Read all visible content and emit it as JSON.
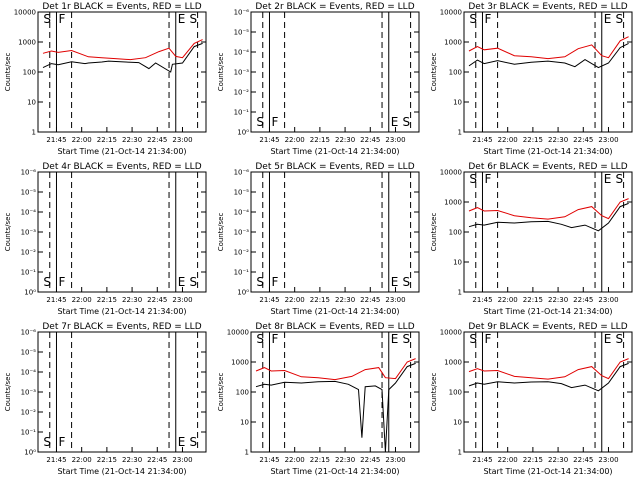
{
  "chart_data": [
    {
      "type": "line",
      "title": "Det 1r BLACK = Events, RED = LLD",
      "xlabel": "Start Time (21-Oct-14 21:34:00)",
      "ylabel": "Counts/sec",
      "ylog": true,
      "yticks": [
        "1",
        "10",
        "100",
        "1000",
        "10000"
      ],
      "ylim": [
        1,
        10000
      ],
      "xticks": [
        "21:45",
        "22:00",
        "22:15",
        "22:30",
        "22:45",
        "23:00"
      ],
      "xlim_minutes": [
        0,
        100
      ],
      "has_data": true,
      "markers": [
        {
          "label": "S",
          "minute": 2
        },
        {
          "label": "F",
          "minute": 11
        },
        {
          "label": "E",
          "minute": 82
        },
        {
          "label": "S",
          "minute": 89
        }
      ],
      "series": [
        {
          "name": "Events",
          "color": "#000000",
          "values": [
            [
              3,
              140
            ],
            [
              8,
              190
            ],
            [
              12,
              175
            ],
            [
              20,
              220
            ],
            [
              28,
              190
            ],
            [
              30,
              200
            ],
            [
              38,
              215
            ],
            [
              42,
              230
            ],
            [
              55,
              210
            ],
            [
              60,
              205
            ],
            [
              66,
              130
            ],
            [
              70,
              200
            ],
            [
              79,
              100
            ],
            [
              80,
              180
            ],
            [
              86,
              200
            ],
            [
              93,
              700
            ],
            [
              98,
              900
            ]
          ]
        },
        {
          "name": "LLD",
          "color": "#e00000",
          "values": [
            [
              3,
              420
            ],
            [
              8,
              500
            ],
            [
              12,
              450
            ],
            [
              20,
              520
            ],
            [
              30,
              320
            ],
            [
              38,
              300
            ],
            [
              46,
              280
            ],
            [
              55,
              260
            ],
            [
              64,
              300
            ],
            [
              72,
              480
            ],
            [
              78,
              620
            ],
            [
              82,
              330
            ],
            [
              86,
              300
            ],
            [
              93,
              900
            ],
            [
              98,
              1200
            ]
          ]
        }
      ]
    },
    {
      "type": "line",
      "title": "Det 2r BLACK = Events, RED = LLD",
      "xlabel": "Start Time (21-Oct-14 21:34:00)",
      "ylabel": "Counts/sec",
      "ylog": true,
      "yticks": [
        "10⁰",
        "10⁻¹",
        "10⁻²",
        "10⁻³",
        "10⁻⁴",
        "10⁻⁵",
        "10⁻⁶"
      ],
      "ylim": [
        1,
        1e-06
      ],
      "xticks": [
        "21:45",
        "22:00",
        "22:15",
        "22:30",
        "22:45",
        "23:00"
      ],
      "xlim_minutes": [
        0,
        100
      ],
      "has_data": false,
      "markers": [
        {
          "label": "S",
          "minute": 2
        },
        {
          "label": "F",
          "minute": 11
        },
        {
          "label": "E",
          "minute": 82
        },
        {
          "label": "S",
          "minute": 89
        }
      ],
      "series": []
    },
    {
      "type": "line",
      "title": "Det 3r BLACK = Events, RED = LLD",
      "xlabel": "Start Time (21-Oct-14 21:34:00)",
      "ylabel": "Counts/sec",
      "ylog": true,
      "yticks": [
        "1",
        "10",
        "100",
        "1000",
        "10000"
      ],
      "ylim": [
        1,
        10000
      ],
      "xticks": [
        "21:45",
        "22:00",
        "22:15",
        "22:30",
        "22:45",
        "23:00"
      ],
      "xlim_minutes": [
        0,
        100
      ],
      "has_data": true,
      "markers": [
        {
          "label": "S",
          "minute": 2
        },
        {
          "label": "F",
          "minute": 11
        },
        {
          "label": "E",
          "minute": 82
        },
        {
          "label": "S",
          "minute": 89
        }
      ],
      "series": [
        {
          "name": "Events",
          "color": "#000000",
          "values": [
            [
              3,
              160
            ],
            [
              8,
              250
            ],
            [
              12,
              190
            ],
            [
              20,
              240
            ],
            [
              30,
              180
            ],
            [
              40,
              210
            ],
            [
              50,
              230
            ],
            [
              60,
              200
            ],
            [
              66,
              150
            ],
            [
              72,
              260
            ],
            [
              80,
              140
            ],
            [
              86,
              200
            ],
            [
              93,
              650
            ],
            [
              98,
              900
            ]
          ]
        },
        {
          "name": "LLD",
          "color": "#e00000",
          "values": [
            [
              3,
              500
            ],
            [
              8,
              700
            ],
            [
              12,
              550
            ],
            [
              20,
              620
            ],
            [
              30,
              350
            ],
            [
              40,
              320
            ],
            [
              50,
              280
            ],
            [
              60,
              320
            ],
            [
              68,
              600
            ],
            [
              76,
              800
            ],
            [
              82,
              350
            ],
            [
              86,
              300
            ],
            [
              93,
              1100
            ],
            [
              98,
              1500
            ]
          ]
        }
      ]
    },
    {
      "type": "line",
      "title": "Det 4r BLACK = Events, RED = LLD",
      "xlabel": "Start Time (21-Oct-14 21:34:00)",
      "ylabel": "Counts/sec",
      "ylog": true,
      "yticks": [
        "10⁰",
        "10⁻¹",
        "10⁻²",
        "10⁻³",
        "10⁻⁴",
        "10⁻⁵",
        "10⁻⁶"
      ],
      "ylim": [
        1,
        1e-06
      ],
      "xticks": [
        "21:45",
        "22:00",
        "22:15",
        "22:30",
        "22:45",
        "23:00"
      ],
      "xlim_minutes": [
        0,
        100
      ],
      "has_data": false,
      "markers": [
        {
          "label": "S",
          "minute": 2
        },
        {
          "label": "F",
          "minute": 11
        },
        {
          "label": "E",
          "minute": 82
        },
        {
          "label": "S",
          "minute": 89
        }
      ],
      "series": []
    },
    {
      "type": "line",
      "title": "Det 5r BLACK = Events, RED = LLD",
      "xlabel": "Start Time (21-Oct-14 21:34:00)",
      "ylabel": "Counts/sec",
      "ylog": true,
      "yticks": [
        "10⁰",
        "10⁻¹",
        "10⁻²",
        "10⁻³",
        "10⁻⁴",
        "10⁻⁵",
        "10⁻⁶"
      ],
      "ylim": [
        1,
        1e-06
      ],
      "xticks": [
        "21:45",
        "22:00",
        "22:15",
        "22:30",
        "22:45",
        "23:00"
      ],
      "xlim_minutes": [
        0,
        100
      ],
      "has_data": false,
      "markers": [
        {
          "label": "S",
          "minute": 2
        },
        {
          "label": "F",
          "minute": 11
        },
        {
          "label": "E",
          "minute": 82
        },
        {
          "label": "S",
          "minute": 89
        }
      ],
      "series": []
    },
    {
      "type": "line",
      "title": "Det 6r BLACK = Events, RED = LLD",
      "xlabel": "Start Time (21-Oct-14 21:34:00)",
      "ylabel": "Counts/sec",
      "ylog": true,
      "yticks": [
        "1",
        "10",
        "100",
        "1000",
        "10000"
      ],
      "ylim": [
        1,
        10000
      ],
      "xticks": [
        "21:45",
        "22:00",
        "22:15",
        "22:30",
        "22:45",
        "23:00"
      ],
      "xlim_minutes": [
        0,
        100
      ],
      "has_data": true,
      "markers": [
        {
          "label": "S",
          "minute": 2
        },
        {
          "label": "F",
          "minute": 11
        },
        {
          "label": "E",
          "minute": 82
        },
        {
          "label": "S",
          "minute": 89
        }
      ],
      "series": [
        {
          "name": "Events",
          "color": "#000000",
          "values": [
            [
              3,
              150
            ],
            [
              8,
              180
            ],
            [
              12,
              170
            ],
            [
              20,
              210
            ],
            [
              30,
              200
            ],
            [
              40,
              220
            ],
            [
              50,
              225
            ],
            [
              58,
              180
            ],
            [
              64,
              140
            ],
            [
              72,
              170
            ],
            [
              80,
              110
            ],
            [
              86,
              200
            ],
            [
              93,
              700
            ],
            [
              98,
              900
            ]
          ]
        },
        {
          "name": "LLD",
          "color": "#e00000",
          "values": [
            [
              3,
              500
            ],
            [
              8,
              650
            ],
            [
              12,
              500
            ],
            [
              20,
              520
            ],
            [
              30,
              350
            ],
            [
              40,
              300
            ],
            [
              50,
              270
            ],
            [
              60,
              320
            ],
            [
              68,
              560
            ],
            [
              76,
              700
            ],
            [
              82,
              350
            ],
            [
              86,
              280
            ],
            [
              93,
              1000
            ],
            [
              98,
              1300
            ]
          ]
        }
      ]
    },
    {
      "type": "line",
      "title": "Det 7r BLACK = Events, RED = LLD",
      "xlabel": "Start Time (21-Oct-14 21:34:00)",
      "ylabel": "Counts/sec",
      "ylog": true,
      "yticks": [
        "10⁰",
        "10⁻¹",
        "10⁻²",
        "10⁻³",
        "10⁻⁴",
        "10⁻⁵",
        "10⁻⁶"
      ],
      "ylim": [
        1,
        1e-06
      ],
      "xticks": [
        "21:45",
        "22:00",
        "22:15",
        "22:30",
        "22:45",
        "23:00"
      ],
      "xlim_minutes": [
        0,
        100
      ],
      "has_data": false,
      "markers": [
        {
          "label": "S",
          "minute": 2
        },
        {
          "label": "F",
          "minute": 11
        },
        {
          "label": "E",
          "minute": 82
        },
        {
          "label": "S",
          "minute": 89
        }
      ],
      "series": []
    },
    {
      "type": "line",
      "title": "Det 8r BLACK = Events, RED = LLD",
      "xlabel": "Start Time (21-Oct-14 21:34:00)",
      "ylabel": "Counts/sec",
      "ylog": true,
      "yticks": [
        "1",
        "10",
        "100",
        "1000",
        "10000"
      ],
      "ylim": [
        1,
        10000
      ],
      "xticks": [
        "21:45",
        "22:00",
        "22:15",
        "22:30",
        "22:45",
        "23:00"
      ],
      "xlim_minutes": [
        0,
        100
      ],
      "has_data": true,
      "markers": [
        {
          "label": "S",
          "minute": 2
        },
        {
          "label": "F",
          "minute": 11
        },
        {
          "label": "E",
          "minute": 82
        },
        {
          "label": "S",
          "minute": 89
        }
      ],
      "series": [
        {
          "name": "Events",
          "color": "#000000",
          "values": [
            [
              3,
              150
            ],
            [
              8,
              180
            ],
            [
              12,
              170
            ],
            [
              20,
              210
            ],
            [
              30,
              200
            ],
            [
              40,
              220
            ],
            [
              50,
              225
            ],
            [
              58,
              180
            ],
            [
              64,
              120
            ],
            [
              66,
              3
            ],
            [
              68,
              150
            ],
            [
              74,
              160
            ],
            [
              78,
              120
            ],
            [
              80,
              1
            ],
            [
              82,
              120
            ],
            [
              86,
              200
            ],
            [
              93,
              700
            ],
            [
              98,
              900
            ]
          ]
        },
        {
          "name": "LLD",
          "color": "#e00000",
          "values": [
            [
              3,
              500
            ],
            [
              8,
              650
            ],
            [
              12,
              500
            ],
            [
              20,
              520
            ],
            [
              30,
              320
            ],
            [
              40,
              300
            ],
            [
              50,
              260
            ],
            [
              60,
              330
            ],
            [
              68,
              560
            ],
            [
              76,
              650
            ],
            [
              80,
              300
            ],
            [
              86,
              280
            ],
            [
              93,
              1000
            ],
            [
              98,
              1300
            ]
          ]
        }
      ]
    },
    {
      "type": "line",
      "title": "Det 9r BLACK = Events, RED = LLD",
      "xlabel": "Start Time (21-Oct-14 21:34:00)",
      "ylabel": "Counts/sec",
      "ylog": true,
      "yticks": [
        "1",
        "10",
        "100",
        "1000",
        "10000"
      ],
      "ylim": [
        1,
        10000
      ],
      "xticks": [
        "21:45",
        "22:00",
        "22:15",
        "22:30",
        "22:45",
        "23:00"
      ],
      "xlim_minutes": [
        0,
        100
      ],
      "has_data": true,
      "markers": [
        {
          "label": "S",
          "minute": 2
        },
        {
          "label": "F",
          "minute": 11
        },
        {
          "label": "E",
          "minute": 82
        },
        {
          "label": "S",
          "minute": 89
        }
      ],
      "series": [
        {
          "name": "Events",
          "color": "#000000",
          "values": [
            [
              3,
              160
            ],
            [
              8,
              200
            ],
            [
              12,
              180
            ],
            [
              20,
              220
            ],
            [
              30,
              200
            ],
            [
              40,
              215
            ],
            [
              50,
              220
            ],
            [
              58,
              190
            ],
            [
              64,
              140
            ],
            [
              72,
              170
            ],
            [
              80,
              110
            ],
            [
              86,
              200
            ],
            [
              93,
              700
            ],
            [
              98,
              900
            ]
          ]
        },
        {
          "name": "LLD",
          "color": "#e00000",
          "values": [
            [
              3,
              480
            ],
            [
              8,
              600
            ],
            [
              12,
              500
            ],
            [
              20,
              520
            ],
            [
              30,
              330
            ],
            [
              40,
              300
            ],
            [
              50,
              270
            ],
            [
              60,
              320
            ],
            [
              68,
              560
            ],
            [
              76,
              700
            ],
            [
              82,
              350
            ],
            [
              86,
              280
            ],
            [
              93,
              1000
            ],
            [
              98,
              1300
            ]
          ]
        }
      ]
    }
  ]
}
